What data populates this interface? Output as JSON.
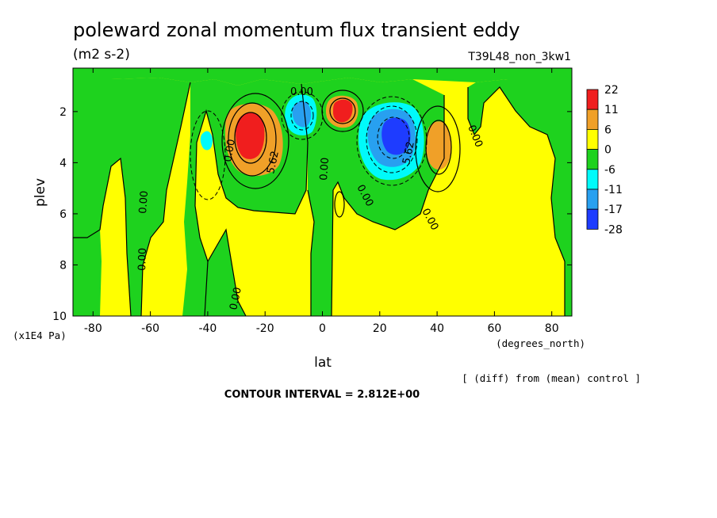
{
  "title": "poleward zonal momentum flux transient eddy",
  "units": "(m2 s-2)",
  "run_label": "T39L48_non_3kw1",
  "note": "[ (diff) from (mean) control ]",
  "contour_interval_text": "CONTOUR INTERVAL = 2.812E+00",
  "colors": {
    "red": "#f01e1e",
    "orange": "#f0a028",
    "yellow": "#ffff00",
    "green": "#1ed21e",
    "cyan": "#00fafa",
    "lightblue": "#28a0f0",
    "blue": "#1e3cff"
  },
  "chart_data": {
    "type": "heatmap",
    "subtype": "filled-contour",
    "title": "poleward zonal momentum flux transient eddy",
    "units": "(m2 s-2)",
    "xlabel": "lat",
    "xunits": "(degrees_north)",
    "ylabel": "plev",
    "yunits": "(x1E4 Pa)",
    "xlim": [
      -87,
      87
    ],
    "ylim": [
      10,
      0.3
    ],
    "y_inverted": true,
    "xticks": [
      -80,
      -60,
      -40,
      -20,
      0,
      20,
      40,
      60,
      80
    ],
    "xtick_labels": [
      "-80",
      "-60",
      "-40",
      "-20",
      "0",
      "20",
      "40",
      "60",
      "80"
    ],
    "yticks": [
      2,
      4,
      6,
      8,
      10
    ],
    "ytick_labels": [
      "2",
      "4",
      "6",
      "8",
      "10"
    ],
    "contour_interval": 2.812,
    "colorbar": {
      "labels": [
        "22",
        "11",
        "6",
        "0",
        "-6",
        "-11",
        "-17",
        "-28"
      ],
      "colors": [
        "#f01e1e",
        "#f0a028",
        "#ffff00",
        "#1ed21e",
        "#00fafa",
        "#28a0f0",
        "#1e3cff"
      ]
    },
    "contour_labels": [
      "0.00",
      "0.00",
      "5.62",
      "0.00",
      "0.00",
      "5.62",
      "0.00",
      "0.00",
      "0.00",
      "0.00",
      "0.00"
    ],
    "features": [
      {
        "name": "max-sh-subtropics",
        "lat": -26,
        "plev": 2.8,
        "value": 22
      },
      {
        "name": "min-sh",
        "lat": -7,
        "plev": 1.9,
        "value": -11
      },
      {
        "name": "max-equator",
        "lat": 7,
        "plev": 1.8,
        "value": 11
      },
      {
        "name": "min-nh-subtropics",
        "lat": 24,
        "plev": 2.7,
        "value": -17
      },
      {
        "name": "max-nh",
        "lat": 42,
        "plev": 3.0,
        "value": 6
      },
      {
        "name": "min-sh-midlat",
        "lat": -40,
        "plev": 3.2,
        "value": -6
      }
    ]
  }
}
